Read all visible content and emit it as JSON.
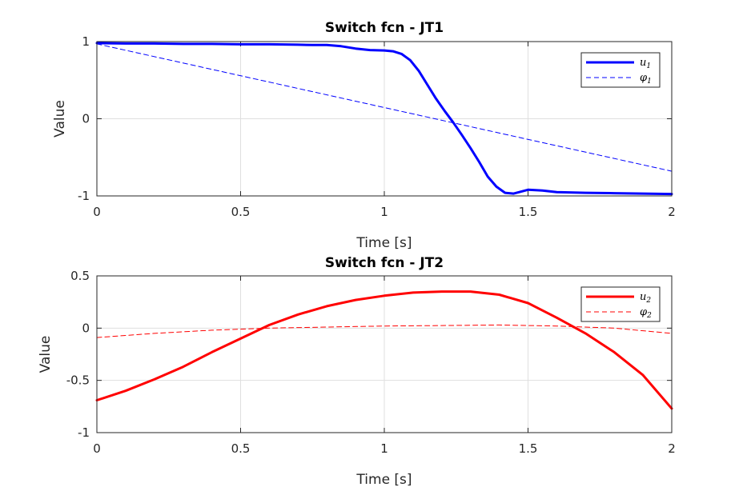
{
  "chart_data": [
    {
      "type": "line",
      "title": "Switch fcn - JT1",
      "xlabel": "Time [s]",
      "ylabel": "Value",
      "xlim": [
        0,
        2
      ],
      "ylim": [
        -1,
        1
      ],
      "xticks": [
        "0",
        "0.5",
        "1",
        "1.5",
        "2"
      ],
      "yticks": [
        "-1",
        "0",
        "1"
      ],
      "grid": true,
      "legend_position": "top-right",
      "series": [
        {
          "name": "u",
          "name_subscript": "1",
          "color": "#0000ff",
          "style": "solid",
          "x": [
            0,
            0.1,
            0.2,
            0.3,
            0.4,
            0.5,
            0.6,
            0.7,
            0.75,
            0.8,
            0.85,
            0.9,
            0.95,
            1.0,
            1.03,
            1.06,
            1.09,
            1.12,
            1.15,
            1.18,
            1.21,
            1.24,
            1.27,
            1.3,
            1.33,
            1.36,
            1.39,
            1.42,
            1.45,
            1.5,
            1.55,
            1.6,
            1.7,
            1.8,
            1.9,
            2.0
          ],
          "y": [
            0.98,
            0.975,
            0.975,
            0.97,
            0.97,
            0.965,
            0.965,
            0.96,
            0.955,
            0.955,
            0.94,
            0.91,
            0.89,
            0.885,
            0.875,
            0.84,
            0.76,
            0.62,
            0.44,
            0.26,
            0.1,
            -0.05,
            -0.21,
            -0.38,
            -0.56,
            -0.75,
            -0.88,
            -0.96,
            -0.97,
            -0.92,
            -0.93,
            -0.95,
            -0.96,
            -0.965,
            -0.97,
            -0.975
          ]
        },
        {
          "name": "φ",
          "name_subscript": "1",
          "color": "#0000ff",
          "style": "dashed",
          "x": [
            0,
            2
          ],
          "y": [
            0.97,
            -0.68
          ]
        }
      ]
    },
    {
      "type": "line",
      "title": "Switch fcn - JT2",
      "xlabel": "Time [s]",
      "ylabel": "Value",
      "xlim": [
        0,
        2
      ],
      "ylim": [
        -1,
        0.5
      ],
      "xticks": [
        "0",
        "0.5",
        "1",
        "1.5",
        "2"
      ],
      "yticks": [
        "-1",
        "-0.5",
        "0",
        "0.5"
      ],
      "grid": true,
      "legend_position": "top-right",
      "series": [
        {
          "name": "u",
          "name_subscript": "2",
          "color": "#ff0000",
          "style": "solid",
          "x": [
            0,
            0.1,
            0.2,
            0.3,
            0.4,
            0.5,
            0.6,
            0.7,
            0.8,
            0.9,
            1.0,
            1.1,
            1.2,
            1.3,
            1.4,
            1.5,
            1.6,
            1.7,
            1.8,
            1.9,
            2.0
          ],
          "y": [
            -0.69,
            -0.6,
            -0.49,
            -0.37,
            -0.23,
            -0.1,
            0.03,
            0.13,
            0.21,
            0.27,
            0.31,
            0.34,
            0.35,
            0.35,
            0.32,
            0.24,
            0.1,
            -0.05,
            -0.23,
            -0.45,
            -0.77
          ]
        },
        {
          "name": "φ",
          "name_subscript": "2",
          "color": "#ff0000",
          "style": "dashed",
          "x": [
            0,
            0.2,
            0.4,
            0.6,
            0.8,
            1.0,
            1.2,
            1.4,
            1.6,
            1.8,
            2.0
          ],
          "y": [
            -0.09,
            -0.05,
            -0.02,
            0.0,
            0.01,
            0.02,
            0.025,
            0.03,
            0.02,
            0.0,
            -0.05
          ]
        }
      ]
    }
  ]
}
